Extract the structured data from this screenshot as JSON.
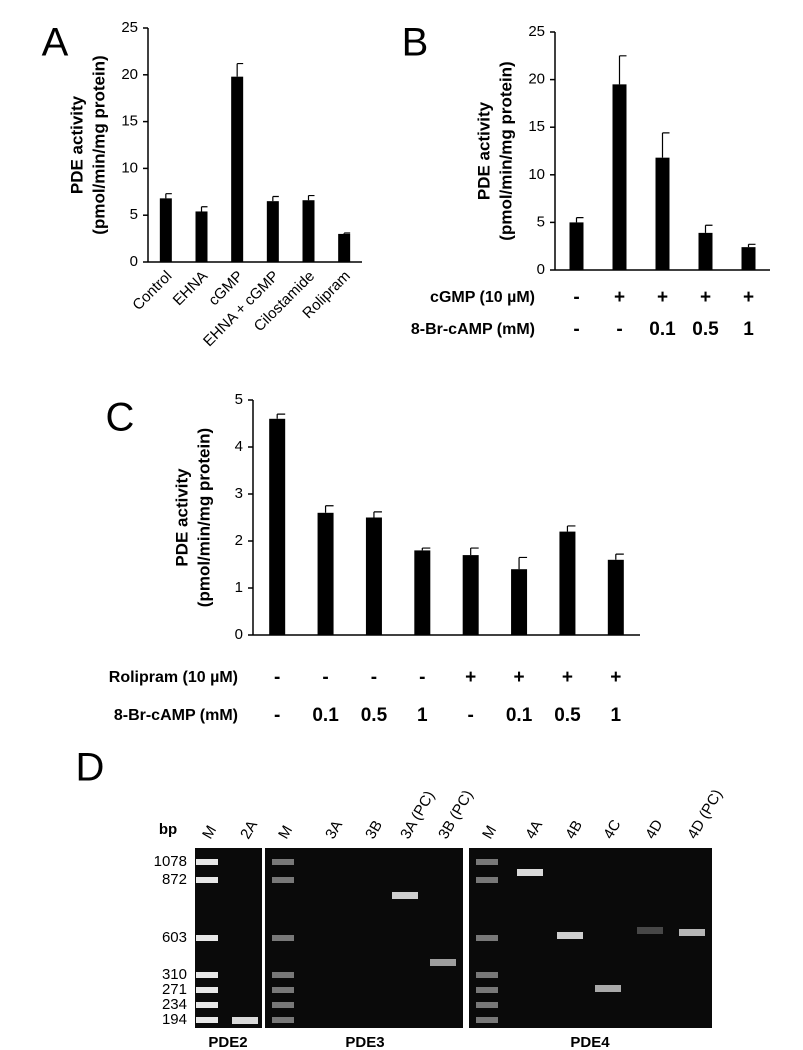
{
  "chart_data": [
    {
      "type": "bar",
      "panel": "A",
      "ylabel": [
        "PDE activity",
        "(pmol/min/mg protein)"
      ],
      "categories": [
        "Control",
        "EHNA",
        "cGMP",
        "EHNA + cGMP",
        "Cilostamide",
        "Rolipram"
      ],
      "values": [
        6.8,
        5.4,
        19.8,
        6.5,
        6.6,
        3.0
      ],
      "errors": [
        0.5,
        0.5,
        1.4,
        0.5,
        0.5,
        0.1
      ],
      "color": "#000000",
      "ylim": [
        0,
        25
      ],
      "yticks": [
        0,
        5,
        10,
        15,
        20,
        25
      ]
    },
    {
      "type": "bar",
      "panel": "B",
      "ylabel": [
        "PDE activity",
        "(pmol/min/mg protein)"
      ],
      "values": [
        5.0,
        19.5,
        11.8,
        3.9,
        2.4
      ],
      "errors": [
        0.5,
        3.0,
        2.6,
        0.8,
        0.3
      ],
      "conditions": [
        {
          "label": "cGMP (10 µM)",
          "values": [
            "-",
            "+",
            "+",
            "+",
            "+"
          ]
        },
        {
          "label": "8-Br-cAMP (mM)",
          "values": [
            "-",
            "-",
            "0.1",
            "0.5",
            "1"
          ]
        }
      ],
      "color": "#000000",
      "ylim": [
        0,
        25
      ],
      "yticks": [
        0,
        5,
        10,
        15,
        20,
        25
      ]
    },
    {
      "type": "bar",
      "panel": "C",
      "ylabel": [
        "PDE activity",
        "(pmol/min/mg protein)"
      ],
      "values": [
        4.6,
        2.6,
        2.5,
        1.8,
        1.7,
        1.4,
        2.2,
        1.6
      ],
      "errors": [
        0.1,
        0.15,
        0.12,
        0.05,
        0.15,
        0.25,
        0.12,
        0.12
      ],
      "conditions": [
        {
          "label": "Rolipram (10 µM)",
          "values": [
            "-",
            "-",
            "-",
            "-",
            "+",
            "+",
            "+",
            "+"
          ]
        },
        {
          "label": "8-Br-cAMP (mM)",
          "values": [
            "-",
            "0.1",
            "0.5",
            "1",
            "-",
            "0.1",
            "0.5",
            "1"
          ]
        }
      ],
      "color": "#000000",
      "ylim": [
        0,
        5
      ],
      "yticks": [
        0,
        1,
        2,
        3,
        4,
        5
      ]
    }
  ],
  "gel": {
    "panel": "D",
    "unit": "bp",
    "markers": [
      1078,
      872,
      603,
      310,
      271,
      234,
      194
    ],
    "lanes": [
      [
        "M",
        "2A"
      ],
      [
        "M",
        "3A",
        "3B",
        "3A (PC)",
        "3B (PC)"
      ],
      [
        "M",
        "4A",
        "4B",
        "4C",
        "4D",
        "4D (PC)"
      ]
    ],
    "groups": [
      "PDE2",
      "PDE3",
      "PDE4"
    ]
  }
}
